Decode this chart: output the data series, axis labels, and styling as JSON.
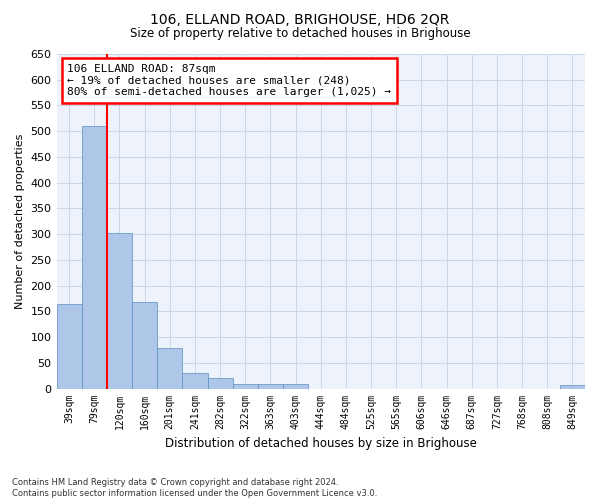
{
  "title": "106, ELLAND ROAD, BRIGHOUSE, HD6 2QR",
  "subtitle": "Size of property relative to detached houses in Brighouse",
  "xlabel": "Distribution of detached houses by size in Brighouse",
  "ylabel": "Number of detached properties",
  "bar_labels": [
    "39sqm",
    "79sqm",
    "120sqm",
    "160sqm",
    "201sqm",
    "241sqm",
    "282sqm",
    "322sqm",
    "363sqm",
    "403sqm",
    "444sqm",
    "484sqm",
    "525sqm",
    "565sqm",
    "606sqm",
    "646sqm",
    "687sqm",
    "727sqm",
    "768sqm",
    "808sqm",
    "849sqm"
  ],
  "bar_values": [
    165,
    510,
    303,
    168,
    78,
    31,
    20,
    8,
    8,
    8,
    0,
    0,
    0,
    0,
    0,
    0,
    0,
    0,
    0,
    0,
    6
  ],
  "bar_color": "#aec6e8",
  "bar_edge_color": "#5a8fc2",
  "property_line_x": 1.5,
  "annotation_text": "106 ELLAND ROAD: 87sqm\n← 19% of detached houses are smaller (248)\n80% of semi-detached houses are larger (1,025) →",
  "annotation_box_color": "white",
  "annotation_box_edge_color": "red",
  "vertical_line_color": "red",
  "ylim": [
    0,
    650
  ],
  "yticks": [
    0,
    50,
    100,
    150,
    200,
    250,
    300,
    350,
    400,
    450,
    500,
    550,
    600,
    650
  ],
  "grid_color": "#ccd6e8",
  "background_color": "#eef2fa",
  "footer_line1": "Contains HM Land Registry data © Crown copyright and database right 2024.",
  "footer_line2": "Contains public sector information licensed under the Open Government Licence v3.0."
}
